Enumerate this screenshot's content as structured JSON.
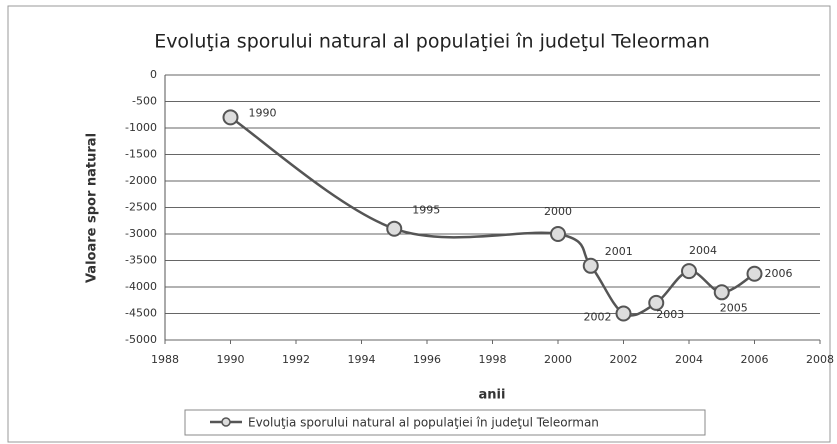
{
  "chart_data": {
    "type": "line",
    "title": "Evoluţia sporului natural al populaţiei în judeţul Teleorman",
    "x_label": "anii",
    "y_label": "Valoare spor natural",
    "x": [
      1990,
      1995,
      2000,
      2001,
      2002,
      2003,
      2004,
      2005,
      2006
    ],
    "series": [
      {
        "name": "Evoluţia sporului natural al populaţiei în judeţul Teleorman",
        "color": "#555555",
        "values": [
          -800,
          -2900,
          -3000,
          -3600,
          -4500,
          -4300,
          -3700,
          -4100,
          -3750
        ]
      }
    ],
    "xlim": [
      1988,
      2008
    ],
    "xticks": [
      1988,
      1990,
      1992,
      1994,
      1996,
      1998,
      2000,
      2002,
      2004,
      2006,
      2008
    ],
    "ylim": [
      -5000,
      0
    ],
    "yticks": [
      0,
      -500,
      -1000,
      -1500,
      -2000,
      -2500,
      -3000,
      -3500,
      -4000,
      -4500,
      -5000
    ],
    "grid": true,
    "legend": "bottom"
  }
}
